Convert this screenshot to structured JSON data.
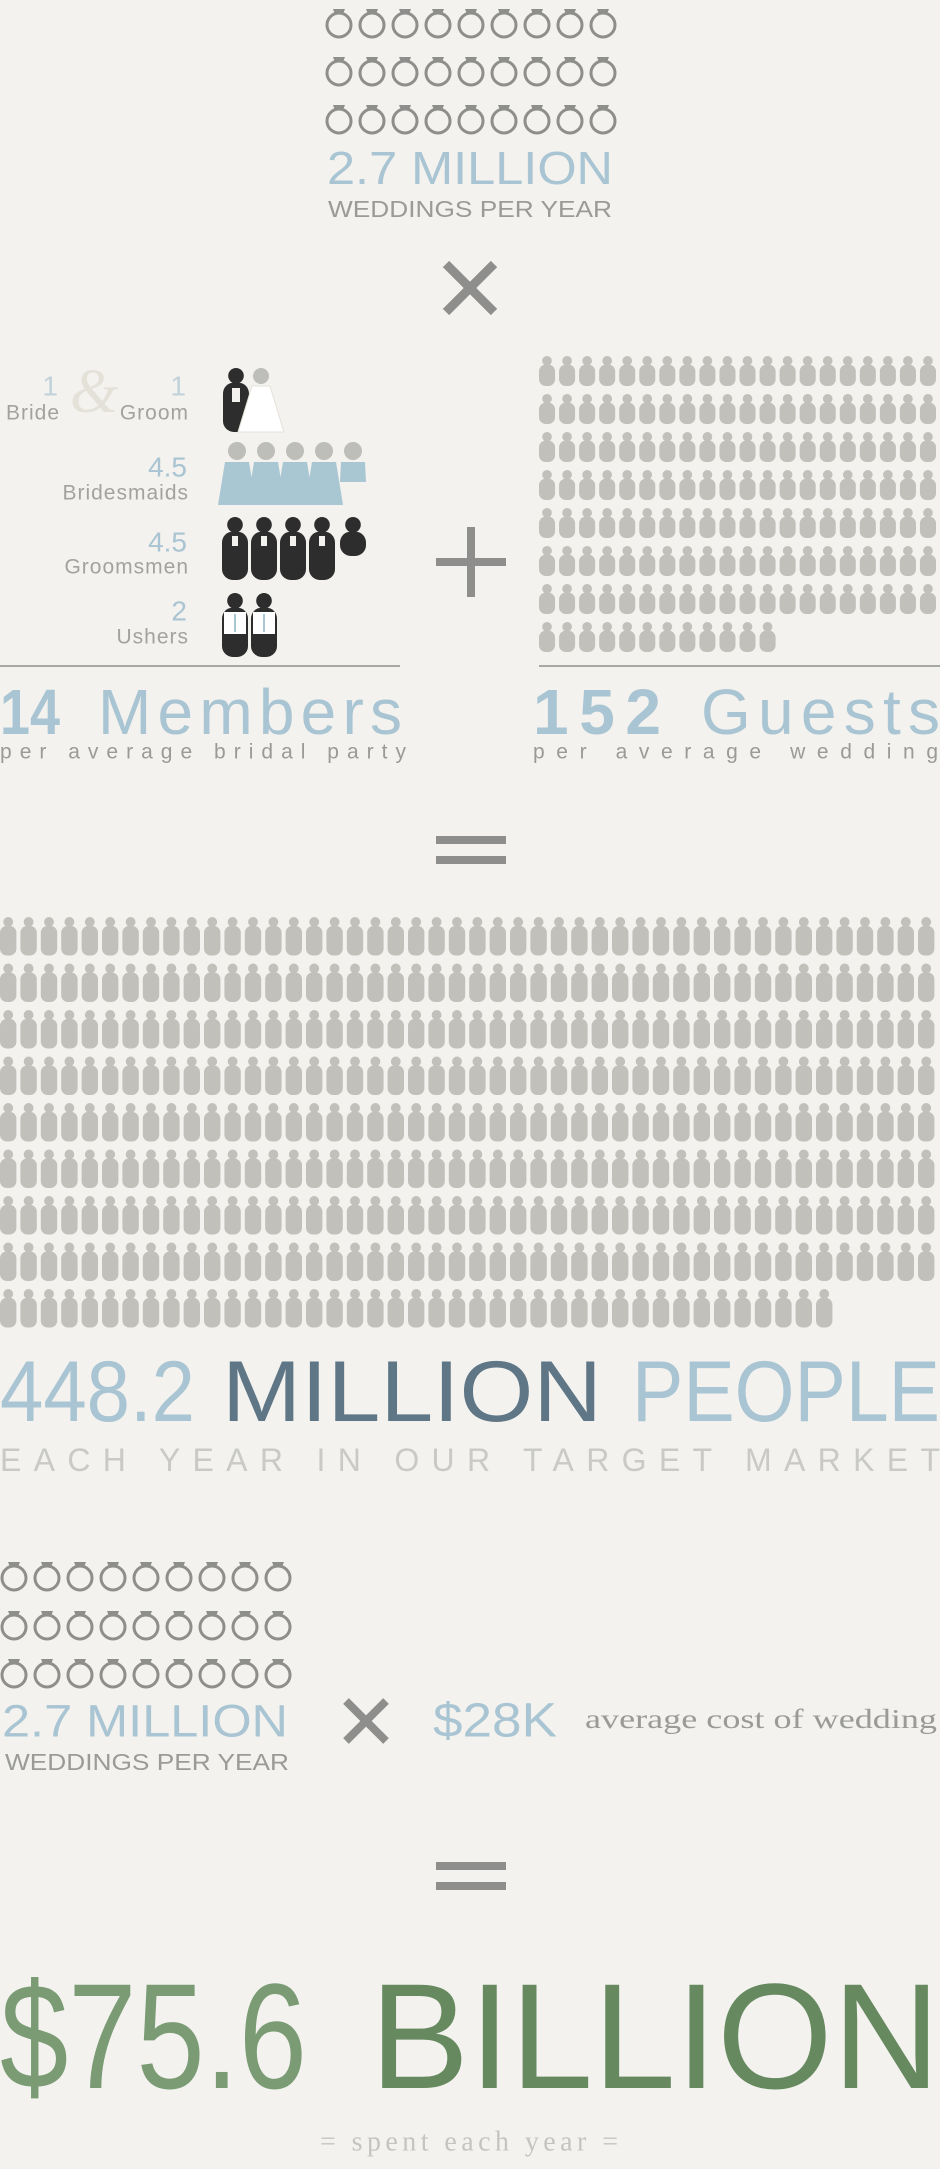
{
  "top": {
    "value": "2.7 MILLION",
    "label": "WEDDINGS PER YEAR"
  },
  "party": {
    "bride": {
      "count": "1",
      "label": "Bride"
    },
    "amp": "&",
    "groom": {
      "count": "1",
      "label": "Groom"
    },
    "rows": [
      {
        "count": "4.5",
        "label": "Bridesmaids"
      },
      {
        "count": "4.5",
        "label": "Groomsmen"
      },
      {
        "count": "2",
        "label": "Ushers"
      }
    ],
    "total": {
      "number": "14",
      "unit": "Members",
      "caption": "per average bridal party"
    }
  },
  "guests": {
    "number": "152",
    "unit": "Guests",
    "caption": "per average wedding"
  },
  "people": {
    "number": "448.2",
    "unit": "MILLION",
    "noun": "PEOPLE",
    "caption": "EACH YEAR IN OUR TARGET MARKET"
  },
  "cost": {
    "weddings": "2.7 MILLION",
    "weddings_label": "WEDDINGS PER YEAR",
    "price": "$28K",
    "price_label": "average cost of wedding"
  },
  "result": {
    "amount": "$75.6",
    "unit": "BILLION",
    "caption": "= spent each year ="
  }
}
